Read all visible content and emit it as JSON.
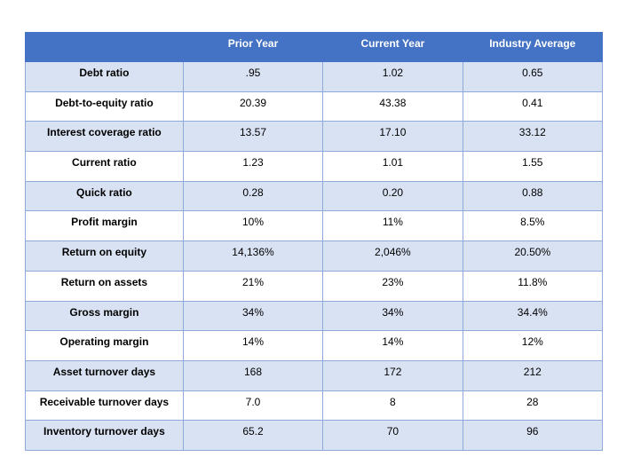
{
  "table": {
    "header": [
      "Prior Year",
      "Current Year",
      "Industry Average"
    ],
    "rows": [
      [
        "Debt ratio",
        ".95",
        "1.02",
        "0.65"
      ],
      [
        "Debt-to-equity ratio",
        "20.39",
        "43.38",
        "0.41"
      ],
      [
        "Interest coverage ratio",
        "13.57",
        "17.10",
        "33.12"
      ],
      [
        "Current ratio",
        "1.23",
        "1.01",
        "1.55"
      ],
      [
        "Quick ratio",
        "0.28",
        "0.20",
        "0.88"
      ],
      [
        "Profit margin",
        "10%",
        "11%",
        "8.5%"
      ],
      [
        "Return on equity",
        "14,136%",
        "2,046%",
        "20.50%"
      ],
      [
        "Return on assets",
        "21%",
        "23%",
        "11.8%"
      ],
      [
        "Gross margin",
        "34%",
        "34%",
        "34.4%"
      ],
      [
        "Operating margin",
        "14%",
        "14%",
        "12%"
      ],
      [
        "Asset turnover days",
        "168",
        "172",
        "212"
      ],
      [
        "Receivable turnover days",
        "7.0",
        "8",
        "28"
      ],
      [
        "Inventory turnover days",
        "65.2",
        "70",
        "96"
      ]
    ]
  }
}
